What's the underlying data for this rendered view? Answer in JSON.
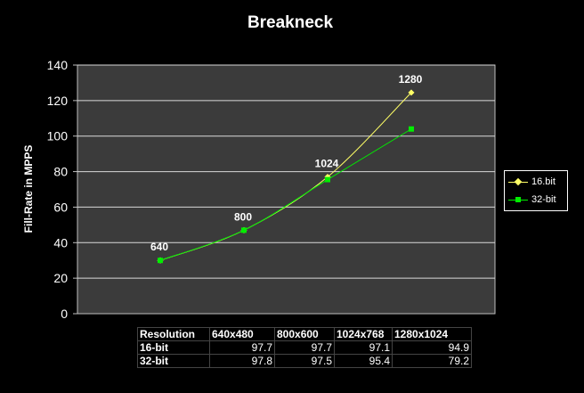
{
  "chart_data": {
    "type": "line",
    "title": "Breakneck",
    "ylabel": "Fill-Rate in MPPS",
    "xlabel": "",
    "ylim": [
      0,
      140
    ],
    "yticks": [
      0,
      20,
      40,
      60,
      80,
      100,
      120,
      140
    ],
    "grid": true,
    "legend_position": "right",
    "x": [
      640,
      800,
      1024,
      1280
    ],
    "point_labels": [
      "640",
      "800",
      "1024",
      "1280"
    ],
    "series": [
      {
        "name": "16.bit",
        "color": "#ffff66",
        "marker": "diamond",
        "values": [
          30,
          47,
          77,
          124.5
        ]
      },
      {
        "name": "32-bit",
        "color": "#00ee00",
        "marker": "square",
        "values": [
          30,
          47,
          75.5,
          104
        ]
      }
    ]
  },
  "table": {
    "header": [
      "Resolution",
      "640x480",
      "800x600",
      "1024x768",
      "1280x1024"
    ],
    "rows": [
      {
        "label": "16-bit",
        "values": [
          "97.7",
          "97.7",
          "97.1",
          "94.9"
        ]
      },
      {
        "label": "32-bit",
        "values": [
          "97.8",
          "97.5",
          "95.4",
          "79.2"
        ]
      }
    ]
  }
}
